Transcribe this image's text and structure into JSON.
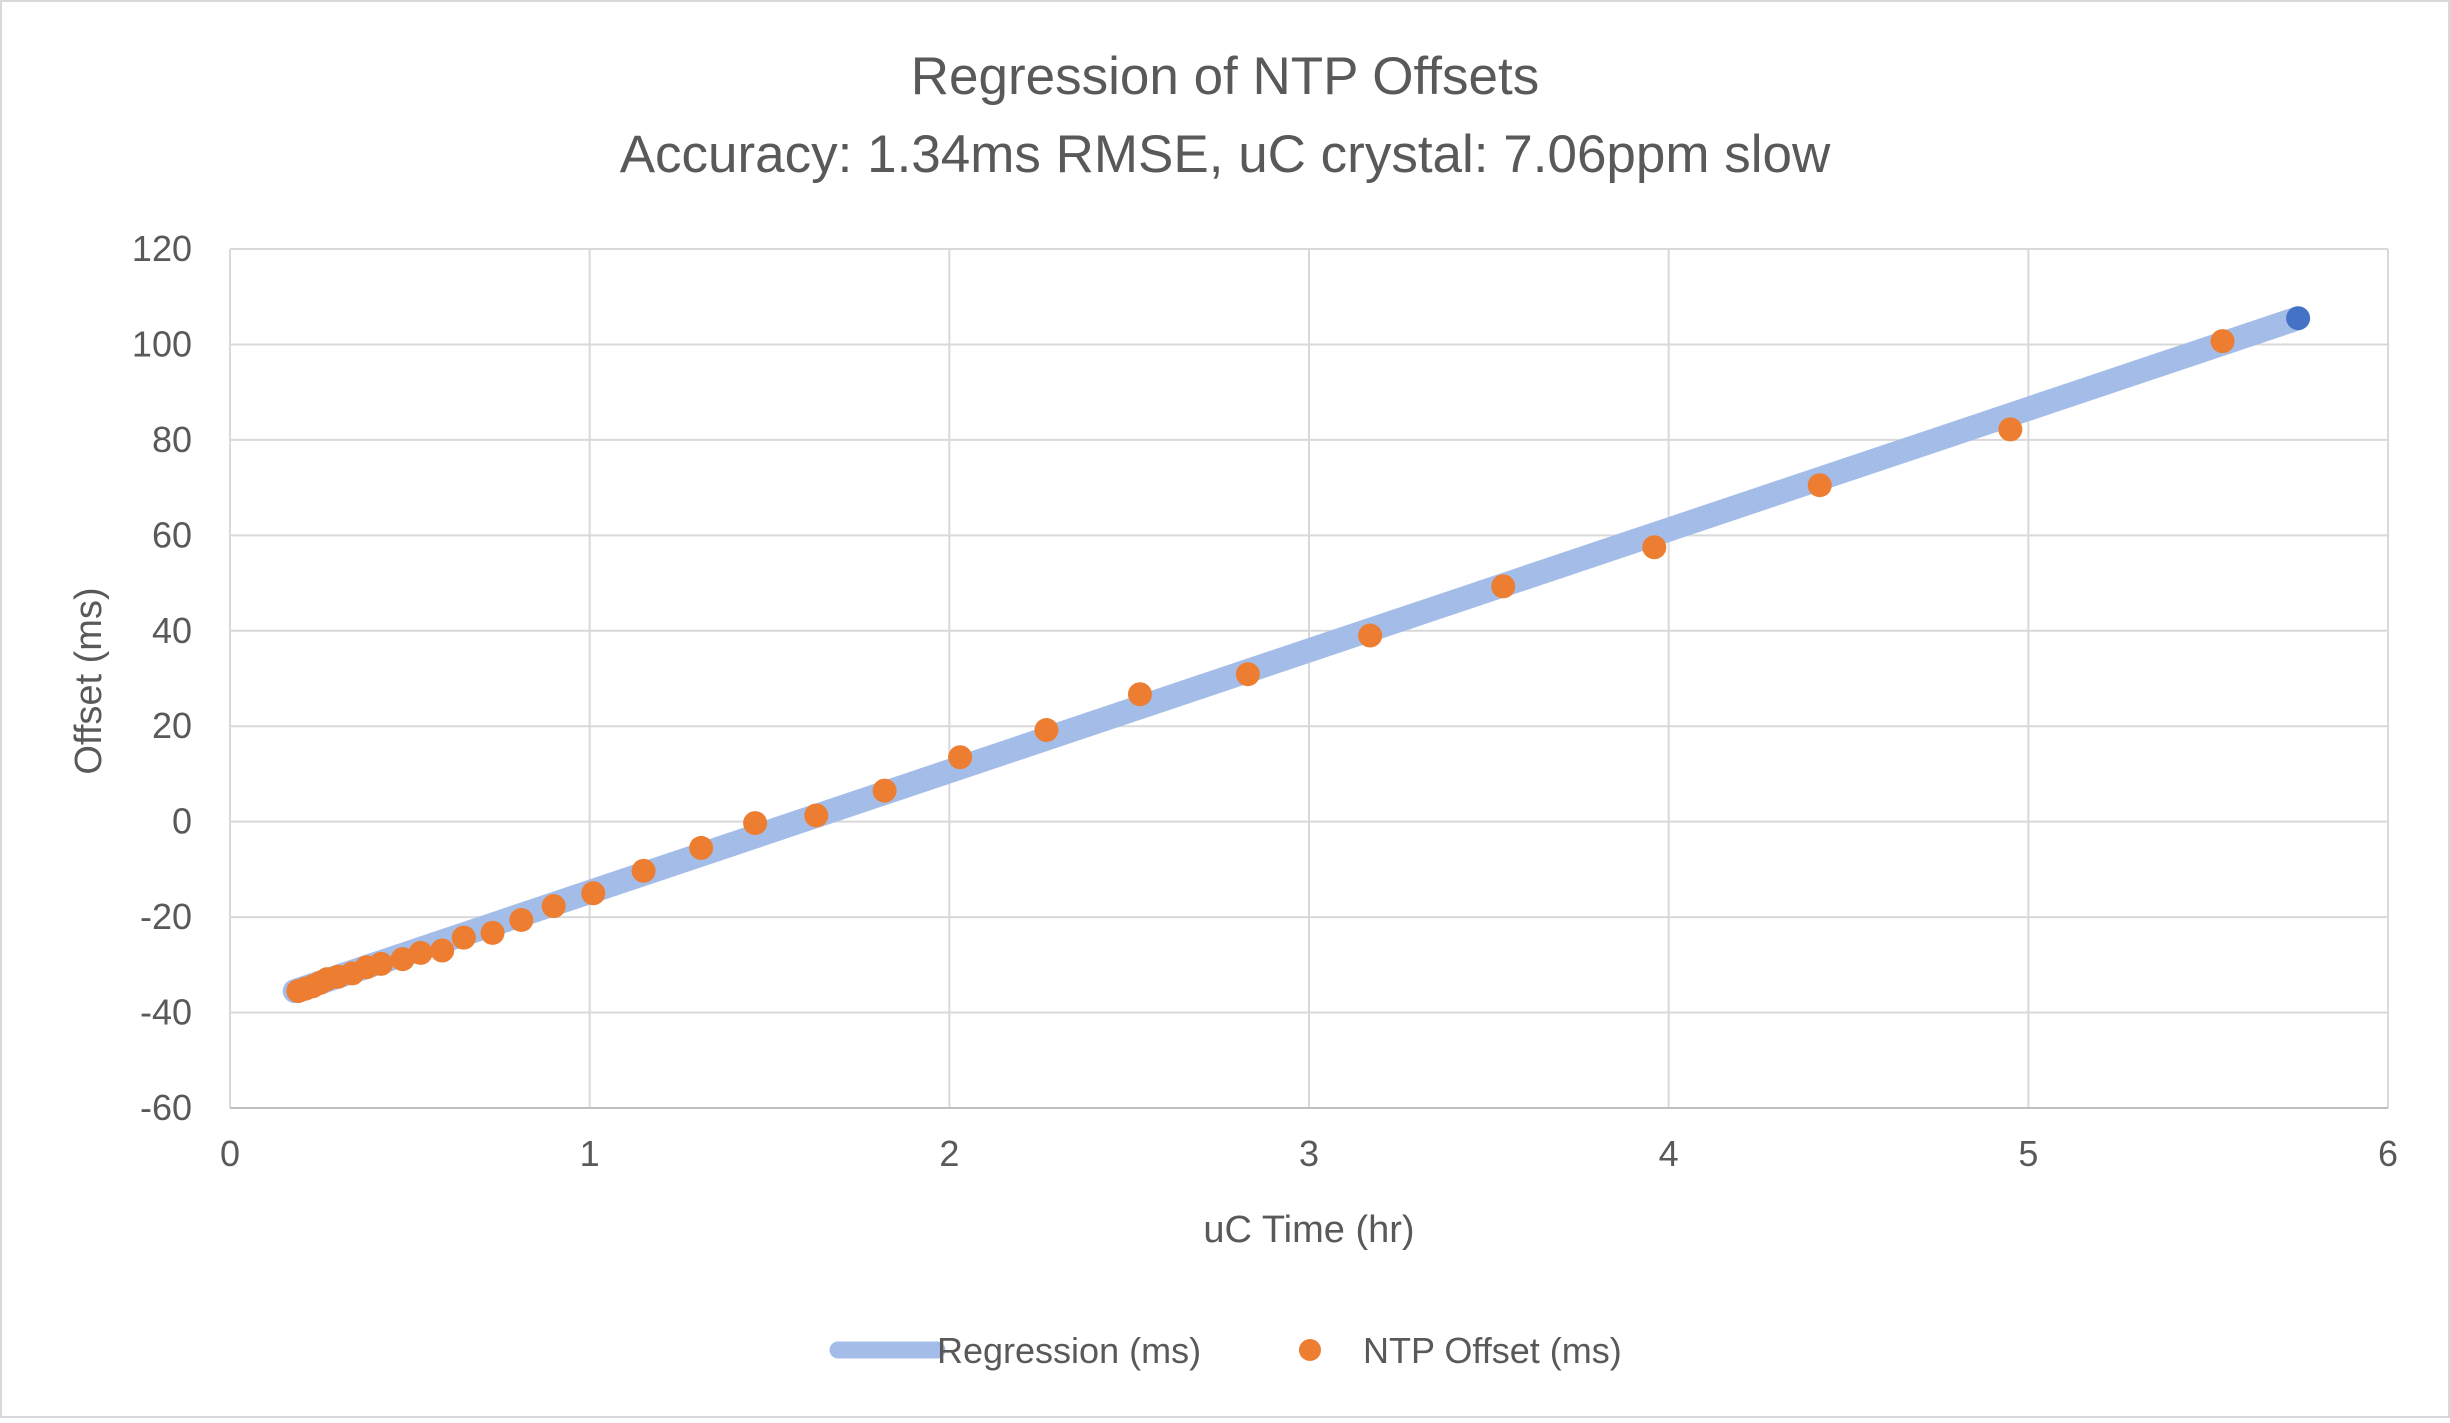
{
  "chart_data": {
    "type": "scatter",
    "title": "Regression of NTP Offsets",
    "subtitle": "Accuracy: 1.34ms RMSE, uC crystal: 7.06ppm slow",
    "xlabel": "uC Time (hr)",
    "ylabel": "Offset (ms)",
    "xlim": [
      0,
      6
    ],
    "ylim": [
      -60,
      120
    ],
    "x_ticks": [
      "0",
      "1",
      "2",
      "3",
      "4",
      "5",
      "6"
    ],
    "y_ticks": [
      "-60",
      "-40",
      "-20",
      "0",
      "20",
      "40",
      "60",
      "80",
      "100",
      "120"
    ],
    "grid": true,
    "legend_position": "bottom",
    "legend": [
      "Regression (ms)",
      "NTP Offset (ms)"
    ],
    "colors": {
      "regression": "#a4bde8",
      "ntp_offset": "#ed7d31",
      "last_point": "#4472c4",
      "grid": "#d9d9d9",
      "text": "#595959"
    },
    "series": [
      {
        "name": "Regression (ms)",
        "kind": "line",
        "x": [
          0.18,
          5.75
        ],
        "y": [
          -35.5,
          105.5
        ]
      },
      {
        "name": "NTP Offset (ms)",
        "kind": "scatter",
        "x": [
          0.19,
          0.21,
          0.23,
          0.25,
          0.27,
          0.3,
          0.34,
          0.38,
          0.42,
          0.48,
          0.53,
          0.59,
          0.65,
          0.73,
          0.81,
          0.9,
          1.01,
          1.15,
          1.31,
          1.46,
          1.63,
          1.82,
          2.03,
          2.27,
          2.53,
          2.83,
          3.17,
          3.54,
          3.96,
          4.42,
          4.95,
          5.54
        ],
        "y": [
          -35.5,
          -35,
          -34.5,
          -33.8,
          -33,
          -32.5,
          -31.8,
          -30.5,
          -29.8,
          -28.8,
          -27.5,
          -27,
          -24.3,
          -23.3,
          -20.6,
          -17.7,
          -15,
          -10.3,
          -5.5,
          -0.3,
          1.3,
          6.5,
          13.5,
          19.2,
          26.7,
          30.9,
          39,
          49.3,
          57.5,
          70.5,
          82.2,
          100.7
        ]
      },
      {
        "name": "",
        "kind": "scatter",
        "x": [
          5.75
        ],
        "y": [
          105.5
        ]
      }
    ]
  }
}
